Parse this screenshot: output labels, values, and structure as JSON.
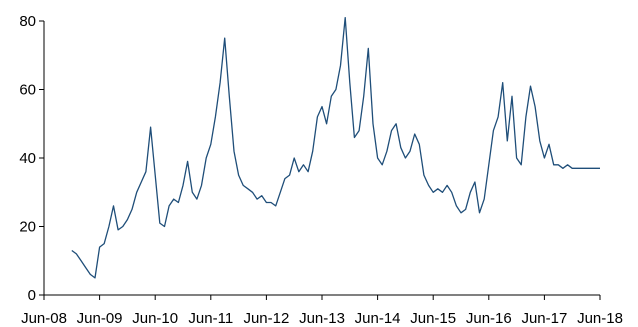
{
  "chart_data": {
    "type": "line",
    "title": "",
    "xlabel": "",
    "ylabel": "",
    "ylim": [
      0,
      80
    ],
    "yticks": [
      "0",
      "20",
      "40",
      "60",
      "80"
    ],
    "xticks": [
      "Jun-08",
      "Jun-09",
      "Jun-10",
      "Jun-11",
      "Jun-12",
      "Jun-13",
      "Jun-14",
      "Jun-15",
      "Jun-16",
      "Jun-17",
      "Jun-18"
    ],
    "xtick_dates": [
      "2008-06",
      "2009-06",
      "2010-06",
      "2011-06",
      "2012-06",
      "2013-06",
      "2014-06",
      "2015-06",
      "2016-06",
      "2017-06",
      "2018-06"
    ],
    "grid": false,
    "legend": "none",
    "series": [
      {
        "color": "#1f4e79",
        "x": [
          "2008-12",
          "2009-01",
          "2009-02",
          "2009-03",
          "2009-04",
          "2009-05",
          "2009-06",
          "2009-07",
          "2009-08",
          "2009-09",
          "2009-10",
          "2009-11",
          "2009-12",
          "2010-01",
          "2010-02",
          "2010-03",
          "2010-04",
          "2010-05",
          "2010-06",
          "2010-07",
          "2010-08",
          "2010-09",
          "2010-10",
          "2010-11",
          "2010-12",
          "2011-01",
          "2011-02",
          "2011-03",
          "2011-04",
          "2011-05",
          "2011-06",
          "2011-07",
          "2011-08",
          "2011-09",
          "2011-10",
          "2011-11",
          "2011-12",
          "2012-01",
          "2012-02",
          "2012-03",
          "2012-04",
          "2012-05",
          "2012-06",
          "2012-07",
          "2012-08",
          "2012-09",
          "2012-10",
          "2012-11",
          "2012-12",
          "2013-01",
          "2013-02",
          "2013-03",
          "2013-04",
          "2013-05",
          "2013-06",
          "2013-07",
          "2013-08",
          "2013-09",
          "2013-10",
          "2013-11",
          "2013-12",
          "2014-01",
          "2014-02",
          "2014-03",
          "2014-04",
          "2014-05",
          "2014-06",
          "2014-07",
          "2014-08",
          "2014-09",
          "2014-10",
          "2014-11",
          "2014-12",
          "2015-01",
          "2015-02",
          "2015-03",
          "2015-04",
          "2015-05",
          "2015-06",
          "2015-07",
          "2015-08",
          "2015-09",
          "2015-10",
          "2015-11",
          "2015-12",
          "2016-01",
          "2016-02",
          "2016-03",
          "2016-04",
          "2016-05",
          "2016-06",
          "2016-07",
          "2016-08",
          "2016-09",
          "2016-10",
          "2016-11",
          "2016-12",
          "2017-01",
          "2017-02",
          "2017-03",
          "2017-04",
          "2017-05",
          "2017-06",
          "2017-07",
          "2017-08",
          "2017-09",
          "2017-10",
          "2017-11",
          "2017-12",
          "2018-01",
          "2018-02",
          "2018-03",
          "2018-04",
          "2018-05",
          "2018-06"
        ],
        "y": [
          13,
          12,
          10,
          8,
          6,
          5,
          14,
          15,
          20,
          26,
          19,
          20,
          22,
          25,
          30,
          33,
          36,
          49,
          35,
          21,
          20,
          26,
          28,
          27,
          32,
          39,
          30,
          28,
          32,
          40,
          44,
          52,
          62,
          75,
          58,
          42,
          35,
          32,
          31,
          30,
          28,
          29,
          27,
          27,
          26,
          30,
          34,
          35,
          40,
          36,
          38,
          36,
          42,
          52,
          55,
          50,
          58,
          60,
          67,
          81,
          62,
          46,
          48,
          58,
          72,
          50,
          40,
          38,
          42,
          48,
          50,
          43,
          40,
          42,
          47,
          44,
          35,
          32,
          30,
          31,
          30,
          32,
          30,
          26,
          24,
          25,
          30,
          33,
          24,
          28,
          38,
          48,
          52,
          62,
          45,
          58,
          40,
          38,
          52,
          61,
          55,
          45,
          40,
          44,
          38,
          38,
          37,
          38,
          37,
          37,
          37,
          37,
          37,
          37,
          37
        ]
      }
    ]
  }
}
